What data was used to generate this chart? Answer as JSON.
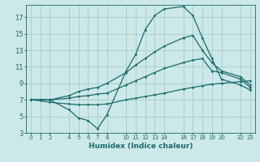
{
  "title": "",
  "xlabel": "Humidex (Indice chaleur)",
  "ylabel": "",
  "background_color": "#cce8e8",
  "grid_color": "#aad0d0",
  "line_color": "#1a6b6b",
  "xlim": [
    -0.5,
    23.5
  ],
  "ylim": [
    3,
    18.5
  ],
  "yticks": [
    3,
    5,
    7,
    9,
    11,
    13,
    15,
    17
  ],
  "xticks": [
    0,
    1,
    2,
    4,
    5,
    6,
    7,
    8,
    10,
    11,
    12,
    13,
    14,
    16,
    17,
    18,
    19,
    20,
    22,
    23
  ],
  "line1_x": [
    0,
    1,
    2,
    4,
    5,
    6,
    7,
    8,
    10,
    11,
    12,
    13,
    14,
    16,
    17,
    18,
    19,
    20,
    22,
    23
  ],
  "line1_y": [
    7.0,
    6.9,
    6.7,
    6.5,
    6.4,
    6.4,
    6.4,
    6.5,
    7.0,
    7.2,
    7.4,
    7.6,
    7.8,
    8.3,
    8.5,
    8.7,
    8.9,
    9.0,
    9.2,
    9.3
  ],
  "line2_x": [
    0,
    1,
    2,
    4,
    5,
    6,
    7,
    8,
    10,
    11,
    12,
    13,
    14,
    16,
    17,
    18,
    19,
    20,
    22,
    23
  ],
  "line2_y": [
    7.0,
    7.0,
    7.0,
    7.2,
    7.4,
    7.5,
    7.7,
    7.8,
    8.8,
    9.3,
    9.8,
    10.3,
    10.8,
    11.5,
    11.8,
    12.0,
    10.5,
    10.3,
    9.5,
    8.5
  ],
  "line3_x": [
    0,
    1,
    2,
    4,
    5,
    6,
    7,
    8,
    10,
    11,
    12,
    13,
    14,
    16,
    17,
    18,
    19,
    20,
    22,
    23
  ],
  "line3_y": [
    7.0,
    7.0,
    7.0,
    7.5,
    8.0,
    8.3,
    8.5,
    9.0,
    10.3,
    11.2,
    12.0,
    12.8,
    13.5,
    14.5,
    14.8,
    13.0,
    11.5,
    10.5,
    9.8,
    8.8
  ],
  "line4_x": [
    0,
    1,
    2,
    4,
    5,
    6,
    7,
    8,
    10,
    11,
    12,
    13,
    14,
    16,
    17,
    18,
    19,
    20,
    22,
    23
  ],
  "line4_y": [
    7.0,
    7.0,
    7.0,
    5.8,
    4.8,
    4.5,
    3.5,
    5.2,
    10.5,
    12.5,
    15.5,
    17.2,
    18.0,
    18.3,
    17.2,
    14.5,
    12.0,
    9.5,
    8.8,
    8.2
  ],
  "marker": "D",
  "markersize": 1.8,
  "linewidth": 0.9
}
